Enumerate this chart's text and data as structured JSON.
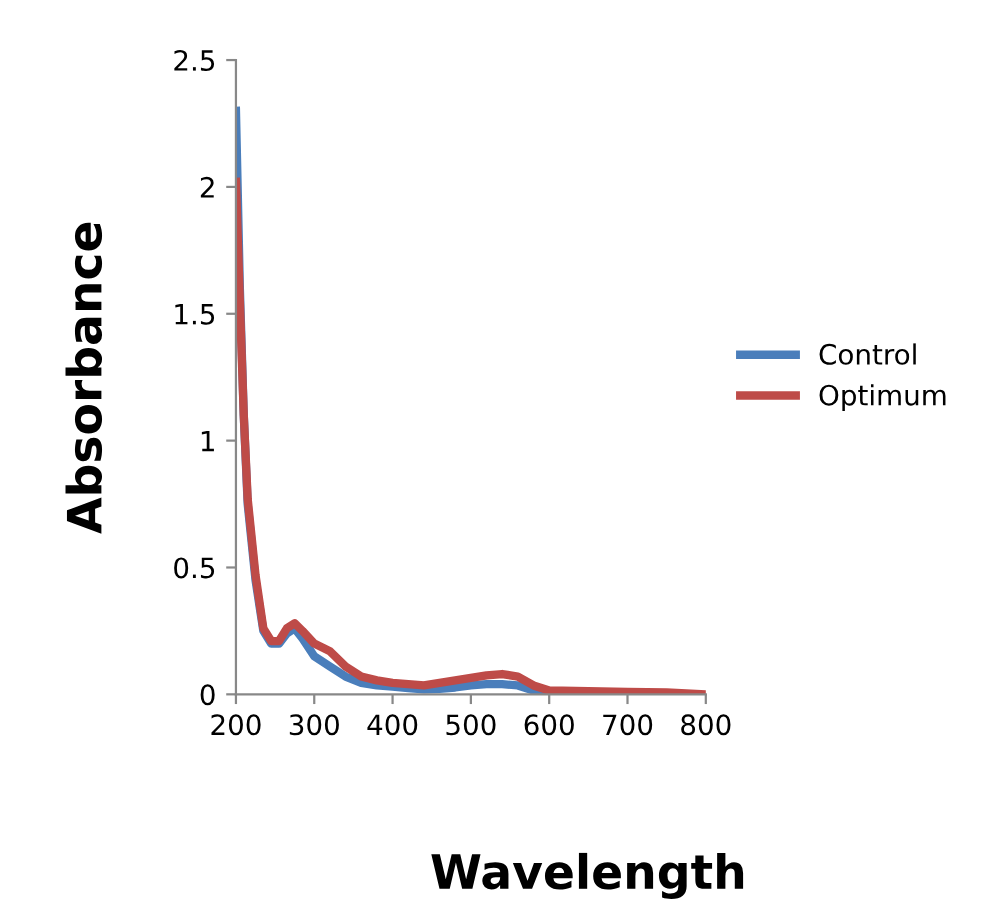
{
  "chart_data": {
    "type": "line",
    "xlabel": "Wavelength",
    "ylabel": "Absorbance",
    "xlim": [
      200,
      800
    ],
    "xticks": [
      200,
      300,
      400,
      500,
      600,
      700,
      800
    ],
    "ylim": [
      0,
      2.5
    ],
    "yticks": [
      0,
      0.5,
      1,
      1.5,
      2,
      2.5
    ],
    "grid": false,
    "legend": "right",
    "marker": "none",
    "line_style": "solid",
    "series": [
      {
        "name": "Control",
        "color": "#4a7ebb",
        "x": [
          200,
          205,
          210,
          215,
          225,
          235,
          245,
          255,
          265,
          275,
          285,
          300,
          320,
          340,
          360,
          380,
          400,
          420,
          440,
          460,
          480,
          500,
          520,
          540,
          560,
          580,
          600
        ],
        "values": [
          2.3,
          1.6,
          1.1,
          0.75,
          0.45,
          0.25,
          0.2,
          0.2,
          0.24,
          0.26,
          0.22,
          0.15,
          0.11,
          0.07,
          0.045,
          0.035,
          0.03,
          0.025,
          0.02,
          0.022,
          0.027,
          0.035,
          0.04,
          0.04,
          0.035,
          0.015,
          0.005
        ]
      },
      {
        "name": "Optimum",
        "color": "#be4b48",
        "x": [
          200,
          205,
          210,
          215,
          225,
          235,
          245,
          255,
          265,
          275,
          285,
          300,
          320,
          340,
          360,
          380,
          400,
          420,
          440,
          460,
          480,
          500,
          520,
          540,
          560,
          580,
          600,
          650,
          700,
          750,
          800
        ],
        "values": [
          2.02,
          1.55,
          1.1,
          0.77,
          0.47,
          0.26,
          0.21,
          0.21,
          0.26,
          0.28,
          0.25,
          0.2,
          0.17,
          0.11,
          0.07,
          0.055,
          0.045,
          0.04,
          0.035,
          0.045,
          0.055,
          0.065,
          0.075,
          0.08,
          0.07,
          0.035,
          0.015,
          0.012,
          0.01,
          0.008,
          0
        ]
      }
    ]
  }
}
